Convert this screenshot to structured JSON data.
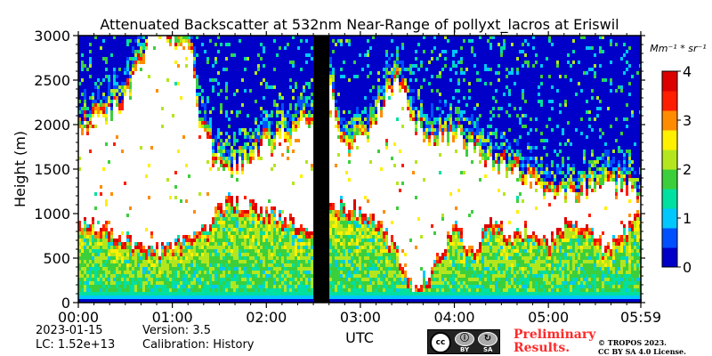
{
  "chart_data": {
    "type": "heatmap",
    "title": "Attenuated Backscatter at 532nm Near-Range of pollyxt_lacros at Eriswil",
    "xlabel": "UTC",
    "ylabel": "Height (m)",
    "x_ticks": [
      "00:00",
      "01:00",
      "02:00",
      "03:00",
      "04:00",
      "05:00",
      "05:59"
    ],
    "x_tick_hours": [
      0,
      1,
      2,
      3,
      4,
      5,
      5.983
    ],
    "x_range_hours": [
      0,
      5.983
    ],
    "y_ticks": [
      "0",
      "500",
      "1000",
      "1500",
      "2000",
      "2500",
      "3000"
    ],
    "y_tick_values": [
      0,
      500,
      1000,
      1500,
      2000,
      2500,
      3000
    ],
    "ylim": [
      0,
      3000
    ],
    "colorbar": {
      "unit_label": "Mm⁻¹ * sr⁻¹",
      "range": [
        0,
        4
      ],
      "ticks": [
        "0",
        "1",
        "2",
        "3",
        "4"
      ],
      "tick_values": [
        0,
        1,
        2,
        3,
        4
      ],
      "colormap": [
        "#0000c8",
        "#0050ff",
        "#00c8ff",
        "#00e0a0",
        "#3ccf3c",
        "#b4e61e",
        "#fff000",
        "#ff8c00",
        "#ff1e00",
        "#dc0000"
      ]
    },
    "data_gap_hours": [
      2.5,
      2.67
    ],
    "cloud_base_profile": {
      "hours": [
        0.0,
        0.2,
        0.4,
        0.5,
        0.6,
        0.7,
        0.8,
        1.0,
        1.2,
        1.3,
        1.45,
        1.6,
        1.8,
        2.0,
        2.2,
        2.4,
        2.5,
        2.67,
        2.75,
        2.9,
        3.1,
        3.3,
        3.4,
        3.5,
        3.6,
        3.8,
        4.0,
        4.2,
        4.4,
        4.6,
        4.8,
        5.0,
        5.2,
        5.4,
        5.6,
        5.8,
        5.983
      ],
      "base_m": [
        1900,
        2050,
        2200,
        2300,
        2450,
        2800,
        3000,
        3000,
        2900,
        2000,
        1650,
        1450,
        1600,
        1750,
        1850,
        2000,
        2000,
        2650,
        2000,
        1650,
        1950,
        2300,
        2450,
        2250,
        1950,
        1800,
        1900,
        1700,
        1550,
        1450,
        1300,
        1250,
        1200,
        1250,
        1350,
        1300,
        1200
      ]
    },
    "boundary_layer_top_profile": {
      "hours": [
        0.0,
        0.2,
        0.4,
        0.6,
        0.8,
        1.0,
        1.2,
        1.4,
        1.5,
        1.6,
        1.8,
        2.0,
        2.2,
        2.4,
        2.5,
        2.67,
        2.8,
        3.0,
        3.2,
        3.4,
        3.5,
        3.6,
        3.8,
        4.0,
        4.2,
        4.4,
        4.6,
        4.8,
        5.0,
        5.2,
        5.4,
        5.6,
        5.8,
        5.983
      ],
      "top_m": [
        950,
        850,
        800,
        700,
        600,
        650,
        750,
        850,
        1100,
        1150,
        1100,
        1050,
        950,
        900,
        850,
        1050,
        1100,
        1050,
        900,
        600,
        250,
        150,
        450,
        850,
        600,
        950,
        750,
        850,
        650,
        900,
        850,
        600,
        800,
        1000
      ]
    }
  },
  "footer": {
    "date": "2023-01-15",
    "lc": "LC: 1.52e+13",
    "version": "Version: 3.5",
    "calibration": "Calibration: History",
    "preliminary": "Preliminary",
    "results": "Results.",
    "copyright": "© TROPOS 2023.",
    "license": "CC BY SA 4.0 License.",
    "cc_logo_text": "cc BY SA"
  }
}
